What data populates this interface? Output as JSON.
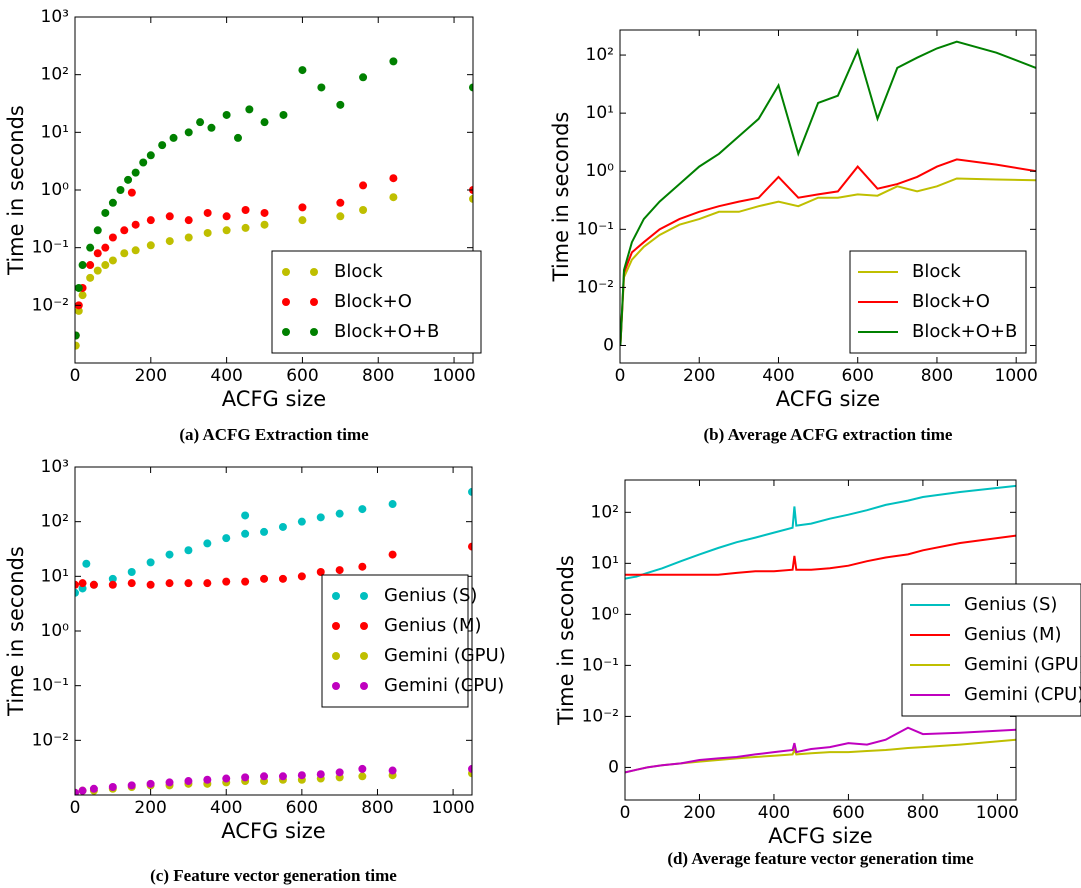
{
  "chart_data": [
    {
      "type": "scatter",
      "caption": "(a) ACFG Extraction time",
      "xlabel": "ACFG size",
      "ylabel": "Time in seconds",
      "log_y": true,
      "legend": "lower right",
      "xlim": [
        0,
        1050
      ],
      "xticks": [
        0,
        200,
        400,
        600,
        800,
        1000
      ],
      "ylim": [
        0.001,
        1000
      ],
      "yticks": [
        {
          "value": 0.01,
          "label": "10⁻²"
        },
        {
          "value": 0.1,
          "label": "10⁻¹"
        },
        {
          "value": 1,
          "label": "10⁰"
        },
        {
          "value": 10,
          "label": "10¹"
        },
        {
          "value": 100,
          "label": "10²"
        },
        {
          "value": 1000,
          "label": "10³"
        }
      ],
      "series": [
        {
          "name": "Block",
          "color": "#bfbf00",
          "x": [
            2,
            10,
            20,
            40,
            60,
            80,
            100,
            130,
            160,
            200,
            250,
            300,
            350,
            400,
            450,
            500,
            600,
            700,
            760,
            840,
            1050
          ],
          "values": [
            0.002,
            0.008,
            0.015,
            0.03,
            0.04,
            0.05,
            0.06,
            0.08,
            0.09,
            0.11,
            0.13,
            0.15,
            0.18,
            0.2,
            0.22,
            0.25,
            0.3,
            0.35,
            0.45,
            0.75,
            0.7
          ]
        },
        {
          "name": "Block+O",
          "color": "#ff0000",
          "x": [
            2,
            10,
            20,
            40,
            60,
            80,
            100,
            130,
            150,
            160,
            200,
            250,
            300,
            350,
            400,
            450,
            500,
            600,
            700,
            760,
            840,
            1050
          ],
          "values": [
            0.003,
            0.01,
            0.02,
            0.05,
            0.08,
            0.1,
            0.15,
            0.2,
            0.9,
            0.25,
            0.3,
            0.35,
            0.3,
            0.4,
            0.35,
            0.45,
            0.4,
            0.5,
            0.6,
            1.2,
            1.6,
            1.0
          ]
        },
        {
          "name": "Block+O+B",
          "color": "#008000",
          "x": [
            2,
            10,
            20,
            40,
            60,
            80,
            100,
            120,
            140,
            160,
            180,
            200,
            230,
            260,
            300,
            330,
            360,
            400,
            430,
            460,
            500,
            550,
            600,
            650,
            700,
            760,
            840,
            1050
          ],
          "values": [
            0.003,
            0.02,
            0.05,
            0.1,
            0.2,
            0.4,
            0.6,
            1,
            1.5,
            2,
            3,
            4,
            6,
            8,
            10,
            15,
            12,
            20,
            8,
            25,
            15,
            20,
            120,
            60,
            30,
            90,
            170,
            60
          ]
        }
      ]
    },
    {
      "type": "line",
      "caption": "(b) Average ACFG extraction time",
      "xlabel": "ACFG size",
      "ylabel": "Time in seconds",
      "log_y": true,
      "legend": "lower right",
      "xlim": [
        0,
        1050
      ],
      "xticks": [
        0,
        200,
        400,
        600,
        800,
        1000
      ],
      "ylim": [
        0.0005,
        270
      ],
      "yticks": [
        {
          "value": 0.001,
          "label": "0"
        },
        {
          "value": 0.01,
          "label": "10⁻²"
        },
        {
          "value": 0.1,
          "label": "10⁻¹"
        },
        {
          "value": 1,
          "label": "10⁰"
        },
        {
          "value": 10,
          "label": "10¹"
        },
        {
          "value": 100,
          "label": "10²"
        }
      ],
      "series": [
        {
          "name": "Block",
          "color": "#bfbf00",
          "x": [
            1,
            10,
            30,
            60,
            100,
            150,
            200,
            250,
            300,
            350,
            400,
            450,
            500,
            550,
            600,
            650,
            700,
            750,
            800,
            850,
            950,
            1050
          ],
          "values": [
            0.001,
            0.015,
            0.03,
            0.05,
            0.08,
            0.12,
            0.15,
            0.2,
            0.2,
            0.25,
            0.3,
            0.25,
            0.35,
            0.35,
            0.4,
            0.38,
            0.55,
            0.45,
            0.55,
            0.75,
            0.72,
            0.7
          ]
        },
        {
          "name": "Block+O",
          "color": "#ff0000",
          "x": [
            1,
            10,
            30,
            60,
            100,
            150,
            200,
            250,
            300,
            350,
            400,
            450,
            500,
            550,
            600,
            650,
            700,
            750,
            800,
            850,
            950,
            1050
          ],
          "values": [
            0.001,
            0.018,
            0.04,
            0.06,
            0.1,
            0.15,
            0.2,
            0.25,
            0.3,
            0.35,
            0.8,
            0.35,
            0.4,
            0.45,
            1.2,
            0.5,
            0.6,
            0.8,
            1.2,
            1.6,
            1.3,
            1.0
          ]
        },
        {
          "name": "Block+O+B",
          "color": "#008000",
          "x": [
            1,
            10,
            30,
            60,
            100,
            150,
            200,
            250,
            300,
            350,
            400,
            450,
            500,
            550,
            600,
            650,
            700,
            750,
            800,
            850,
            950,
            1050
          ],
          "values": [
            0.001,
            0.02,
            0.06,
            0.15,
            0.3,
            0.6,
            1.2,
            2,
            4,
            8,
            30,
            2,
            15,
            20,
            120,
            8,
            60,
            90,
            130,
            170,
            110,
            60
          ]
        }
      ]
    },
    {
      "type": "scatter",
      "caption": "(c) Feature vector generation time",
      "xlabel": "ACFG size",
      "ylabel": "Time in seconds",
      "log_y": true,
      "legend": "center right",
      "xlim": [
        0,
        1050
      ],
      "xticks": [
        0,
        200,
        400,
        600,
        800,
        1000
      ],
      "ylim": [
        0.001,
        1000
      ],
      "yticks": [
        {
          "value": 0.01,
          "label": "10⁻²"
        },
        {
          "value": 0.1,
          "label": "10⁻¹"
        },
        {
          "value": 1,
          "label": "10⁰"
        },
        {
          "value": 10,
          "label": "10¹"
        },
        {
          "value": 100,
          "label": "10²"
        },
        {
          "value": 1000,
          "label": "10³"
        }
      ],
      "series": [
        {
          "name": "Genius (S)",
          "color": "#00bfbf",
          "x": [
            0,
            20,
            30,
            50,
            100,
            150,
            200,
            250,
            300,
            350,
            400,
            450,
            450,
            500,
            550,
            600,
            650,
            700,
            760,
            840,
            1050
          ],
          "values": [
            5,
            6,
            17,
            7,
            9,
            12,
            18,
            25,
            30,
            40,
            50,
            60,
            130,
            65,
            80,
            100,
            120,
            140,
            170,
            210,
            350
          ]
        },
        {
          "name": "Genius (M)",
          "color": "#ff0000",
          "x": [
            0,
            20,
            50,
            100,
            150,
            200,
            250,
            300,
            350,
            400,
            450,
            500,
            550,
            600,
            650,
            700,
            760,
            840,
            1050
          ],
          "values": [
            7,
            7.5,
            7,
            7,
            7.5,
            7,
            7.5,
            7.5,
            7.5,
            8,
            8,
            9,
            9,
            10,
            12,
            13,
            15,
            25,
            35
          ]
        },
        {
          "name": "Gemini (GPU)",
          "color": "#bfbf00",
          "x": [
            0,
            20,
            50,
            100,
            150,
            200,
            250,
            300,
            350,
            400,
            450,
            500,
            550,
            600,
            650,
            700,
            760,
            840,
            1050
          ],
          "values": [
            0.0011,
            0.0012,
            0.0012,
            0.0013,
            0.0014,
            0.0015,
            0.0015,
            0.0016,
            0.0016,
            0.0017,
            0.0018,
            0.0018,
            0.0019,
            0.0019,
            0.002,
            0.0021,
            0.0022,
            0.0023,
            0.0025
          ]
        },
        {
          "name": "Gemini (CPU)",
          "color": "#bf00bf",
          "x": [
            0,
            20,
            50,
            100,
            150,
            200,
            250,
            300,
            350,
            400,
            450,
            500,
            550,
            600,
            650,
            700,
            760,
            840,
            1050
          ],
          "values": [
            0.0011,
            0.0012,
            0.0013,
            0.0014,
            0.0015,
            0.0016,
            0.0017,
            0.0018,
            0.0019,
            0.002,
            0.0021,
            0.0022,
            0.0022,
            0.0023,
            0.0024,
            0.0026,
            0.003,
            0.0028,
            0.003
          ]
        }
      ]
    },
    {
      "type": "line",
      "caption": "(d) Average feature vector generation time",
      "xlabel": "ACFG size",
      "ylabel": "Time in seconds",
      "log_y": true,
      "legend": "center right",
      "xlim": [
        0,
        1050
      ],
      "xticks": [
        0,
        200,
        400,
        600,
        800,
        1000
      ],
      "ylim": [
        0.00023,
        430
      ],
      "yticks": [
        {
          "value": 0.001,
          "label": "0"
        },
        {
          "value": 0.01,
          "label": "10⁻²"
        },
        {
          "value": 0.1,
          "label": "10⁻¹"
        },
        {
          "value": 1,
          "label": "10⁰"
        },
        {
          "value": 10,
          "label": "10¹"
        },
        {
          "value": 100,
          "label": "10²"
        }
      ],
      "series": [
        {
          "name": "Genius (S)",
          "color": "#00bfbf",
          "x": [
            0,
            30,
            60,
            100,
            150,
            200,
            250,
            300,
            350,
            400,
            450,
            455,
            460,
            500,
            550,
            600,
            650,
            700,
            760,
            800,
            900,
            1050
          ],
          "values": [
            5,
            5.5,
            6.5,
            8,
            11,
            15,
            20,
            26,
            32,
            40,
            50,
            130,
            55,
            60,
            75,
            90,
            110,
            140,
            170,
            200,
            250,
            330
          ]
        },
        {
          "name": "Genius (M)",
          "color": "#ff0000",
          "x": [
            0,
            30,
            60,
            100,
            150,
            200,
            250,
            300,
            350,
            400,
            450,
            455,
            460,
            500,
            550,
            600,
            650,
            700,
            760,
            800,
            900,
            1050
          ],
          "values": [
            6,
            6,
            6,
            6,
            6,
            6,
            6,
            6.5,
            7,
            7,
            7.5,
            14,
            7.5,
            7.5,
            8,
            9,
            11,
            13,
            15,
            18,
            25,
            35
          ]
        },
        {
          "name": "Gemini (GPU)",
          "color": "#bfbf00",
          "x": [
            0,
            30,
            60,
            100,
            150,
            200,
            250,
            300,
            350,
            400,
            450,
            455,
            460,
            500,
            550,
            600,
            650,
            700,
            760,
            800,
            900,
            1050
          ],
          "values": [
            0.0008,
            0.0009,
            0.001,
            0.0011,
            0.0012,
            0.0013,
            0.0014,
            0.0015,
            0.0016,
            0.0017,
            0.0018,
            0.0022,
            0.0018,
            0.0019,
            0.002,
            0.002,
            0.0021,
            0.0022,
            0.0024,
            0.0025,
            0.0028,
            0.0035
          ]
        },
        {
          "name": "Gemini (CPU)",
          "color": "#bf00bf",
          "x": [
            0,
            30,
            60,
            100,
            150,
            200,
            250,
            300,
            350,
            400,
            450,
            455,
            460,
            500,
            550,
            600,
            650,
            700,
            760,
            800,
            900,
            1050
          ],
          "values": [
            0.0008,
            0.0009,
            0.001,
            0.0011,
            0.0012,
            0.0014,
            0.0015,
            0.0016,
            0.0018,
            0.002,
            0.0022,
            0.003,
            0.002,
            0.0023,
            0.0025,
            0.003,
            0.0028,
            0.0035,
            0.006,
            0.0045,
            0.0048,
            0.0055
          ]
        }
      ]
    }
  ]
}
